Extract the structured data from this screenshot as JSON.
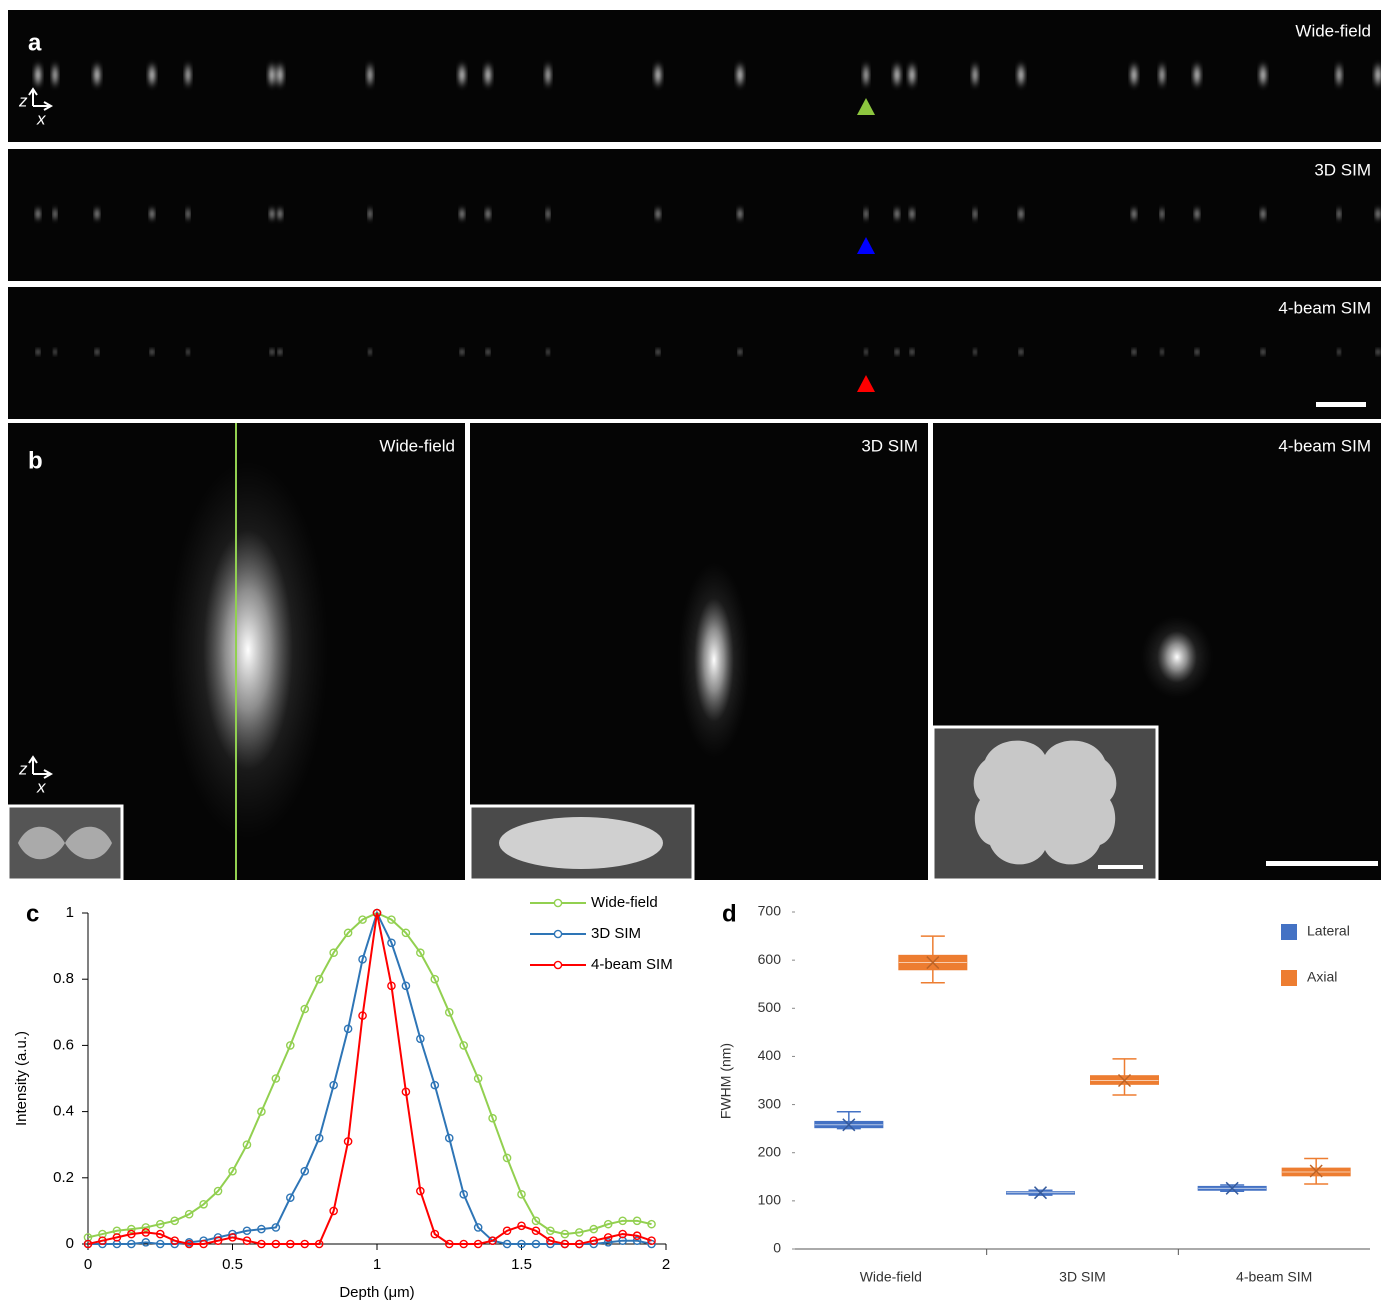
{
  "figure": {
    "panel_a": {
      "label": "a",
      "axis_z": "z",
      "axis_x": "x",
      "rows": [
        "Wide-field",
        "3D SIM",
        "4-beam SIM"
      ]
    },
    "panel_b": {
      "label": "b",
      "axis_z": "z",
      "axis_x": "x",
      "images": [
        "Wide-field",
        "3D SIM",
        "4-beam SIM"
      ]
    }
  },
  "chart_data": [
    {
      "type": "line",
      "panel_label": "c",
      "x_label": "Depth (μm)",
      "y_label": "Intensity (a.u.)",
      "x": [
        0,
        0.05,
        0.1,
        0.15,
        0.2,
        0.25,
        0.3,
        0.35,
        0.4,
        0.45,
        0.5,
        0.55,
        0.6,
        0.65,
        0.7,
        0.75,
        0.8,
        0.85,
        0.9,
        0.95,
        1,
        1.05,
        1.1,
        1.15,
        1.2,
        1.25,
        1.3,
        1.35,
        1.4,
        1.45,
        1.5,
        1.55,
        1.6,
        1.65,
        1.7,
        1.75,
        1.8,
        1.85,
        1.9,
        1.95
      ],
      "xlim": [
        0,
        2
      ],
      "xticks": [
        0,
        0.5,
        1,
        1.5,
        2
      ],
      "ylim": [
        0,
        1
      ],
      "yticks": [
        0,
        0.2,
        0.4,
        0.6,
        0.8,
        1
      ],
      "legend": "top-right",
      "series": [
        {
          "name": "Wide-field",
          "color": "#92d050",
          "values": [
            0.02,
            0.03,
            0.04,
            0.045,
            0.05,
            0.06,
            0.07,
            0.09,
            0.12,
            0.16,
            0.22,
            0.3,
            0.4,
            0.5,
            0.6,
            0.71,
            0.8,
            0.88,
            0.94,
            0.98,
            1,
            0.98,
            0.94,
            0.88,
            0.8,
            0.7,
            0.6,
            0.5,
            0.38,
            0.26,
            0.15,
            0.07,
            0.04,
            0.03,
            0.035,
            0.045,
            0.06,
            0.07,
            0.07,
            0.06
          ]
        },
        {
          "name": "3D SIM",
          "color": "#2e75b6",
          "values": [
            0,
            0,
            0,
            0,
            0.005,
            0,
            0,
            0.005,
            0.01,
            0.02,
            0.03,
            0.04,
            0.045,
            0.05,
            0.14,
            0.22,
            0.32,
            0.48,
            0.65,
            0.86,
            1,
            0.91,
            0.78,
            0.62,
            0.48,
            0.32,
            0.15,
            0.05,
            0.01,
            0,
            0,
            0,
            0,
            0,
            0,
            0,
            0.005,
            0.01,
            0.01,
            0
          ]
        },
        {
          "name": "4-beam SIM",
          "color": "#ff0000",
          "values": [
            0,
            0.01,
            0.02,
            0.03,
            0.035,
            0.03,
            0.01,
            0,
            0,
            0.01,
            0.02,
            0.01,
            0,
            0,
            0,
            0,
            0,
            0.1,
            0.31,
            0.69,
            1,
            0.78,
            0.46,
            0.16,
            0.03,
            0,
            0,
            0,
            0.01,
            0.04,
            0.055,
            0.04,
            0.01,
            0,
            0,
            0.01,
            0.02,
            0.03,
            0.025,
            0.01
          ]
        }
      ]
    },
    {
      "type": "box",
      "panel_label": "d",
      "y_label": "FWHM (nm)",
      "categories": [
        "Wide-field",
        "3D SIM",
        "4-beam SIM"
      ],
      "ylim": [
        0,
        700
      ],
      "yticks": [
        0,
        100,
        200,
        300,
        400,
        500,
        600,
        700
      ],
      "legend": "top-right",
      "series": [
        {
          "name": "Lateral",
          "color": "#4472c4",
          "min": [
            250,
            112,
            120
          ],
          "q1": [
            252,
            114,
            122
          ],
          "median": [
            258,
            117,
            126
          ],
          "q3": [
            265,
            119,
            130
          ],
          "max": [
            285,
            122,
            133
          ],
          "mean": [
            258,
            117,
            126
          ]
        },
        {
          "name": "Axial",
          "color": "#ed7d31",
          "min": [
            553,
            320,
            135
          ],
          "q1": [
            580,
            342,
            152
          ],
          "median": [
            595,
            350,
            160
          ],
          "q3": [
            610,
            360,
            168
          ],
          "max": [
            650,
            395,
            188
          ],
          "mean": [
            595,
            350,
            162
          ]
        }
      ]
    }
  ]
}
